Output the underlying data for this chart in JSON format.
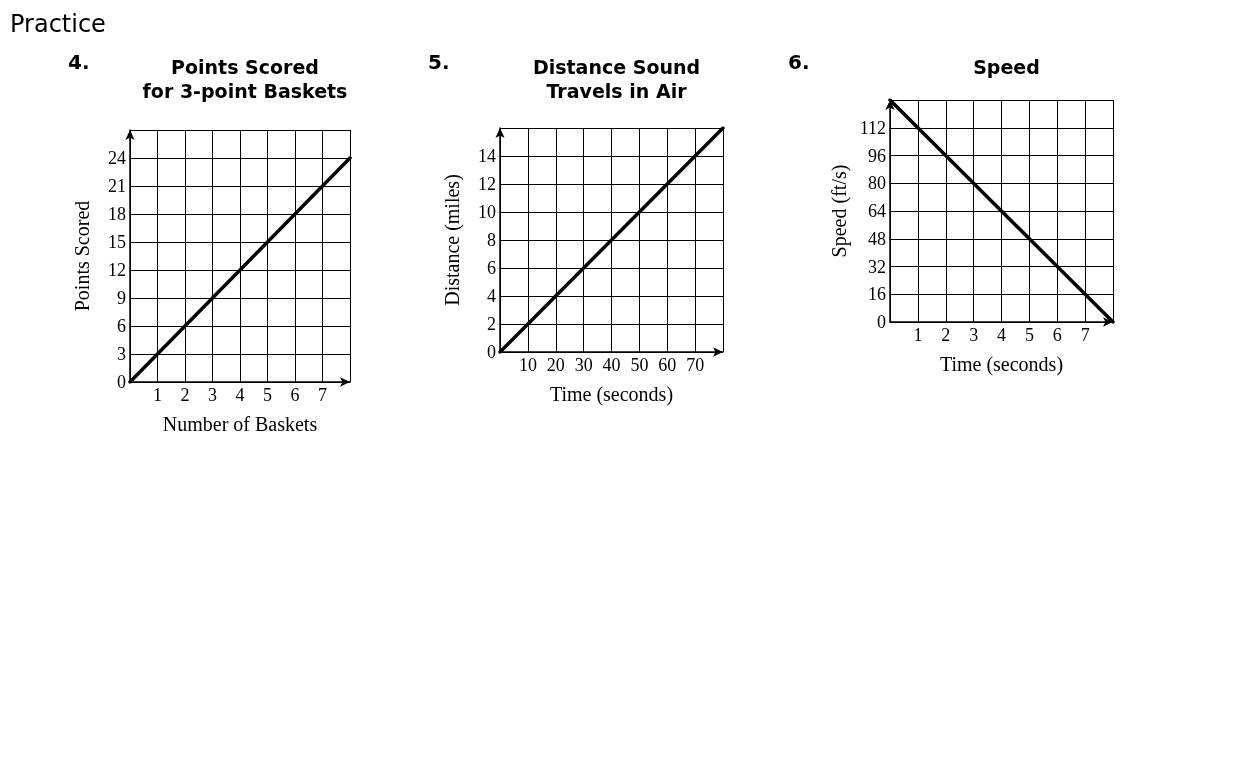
{
  "chart_data": [
    {
      "type": "line",
      "title": "Points Scored\nfor 3-point Baskets",
      "xlabel": "Number of Baskets",
      "ylabel": "Points Scored",
      "annotations": [
        "Practice",
        "4."
      ],
      "x": [
        0,
        8
      ],
      "values": [
        0,
        24
      ],
      "color": "#000000",
      "marker": "none",
      "line_style": "solid",
      "grid": true,
      "xlim": [
        0,
        8
      ],
      "xticks": [
        {
          "value": 0,
          "label": null
        },
        1,
        2,
        3,
        4,
        5,
        6,
        7,
        {
          "value": 8,
          "label": null
        }
      ],
      "ylim": [
        0,
        27
      ],
      "yticks": [
        0,
        3,
        6,
        9,
        12,
        15,
        18,
        21,
        24,
        {
          "value": 27,
          "label": null
        }
      ]
    },
    {
      "type": "line",
      "title": "Distance Sound\nTravels in Air",
      "xlabel": "Time (seconds)",
      "ylabel": "Distance (miles)",
      "annotations": [
        "5."
      ],
      "x": [
        0,
        80
      ],
      "values": [
        0,
        16
      ],
      "color": "#000000",
      "marker": "none",
      "line_style": "solid",
      "grid": true,
      "xlim": [
        0,
        80
      ],
      "xticks": [
        {
          "value": 0,
          "label": null
        },
        10,
        20,
        30,
        40,
        50,
        60,
        70,
        {
          "value": 80,
          "label": null
        }
      ],
      "ylim": [
        0,
        16
      ],
      "yticks": [
        0,
        2,
        4,
        6,
        8,
        10,
        12,
        14,
        {
          "value": 16,
          "label": null
        }
      ]
    },
    {
      "type": "line",
      "title": "Speed",
      "xlabel": "Time (seconds)",
      "ylabel": "Speed (ft/s)",
      "annotations": [
        "6."
      ],
      "x": [
        0,
        8
      ],
      "values": [
        128,
        0
      ],
      "color": "#000000",
      "marker": "none",
      "line_style": "solid",
      "grid": true,
      "xlim": [
        0,
        8
      ],
      "xticks": [
        {
          "value": 0,
          "label": null
        },
        1,
        2,
        3,
        4,
        5,
        6,
        7,
        {
          "value": 8,
          "label": null
        }
      ],
      "ylim": [
        0,
        128
      ],
      "yticks": [
        0,
        16,
        32,
        48,
        64,
        80,
        96,
        112,
        {
          "value": 128,
          "label": null
        }
      ]
    }
  ]
}
